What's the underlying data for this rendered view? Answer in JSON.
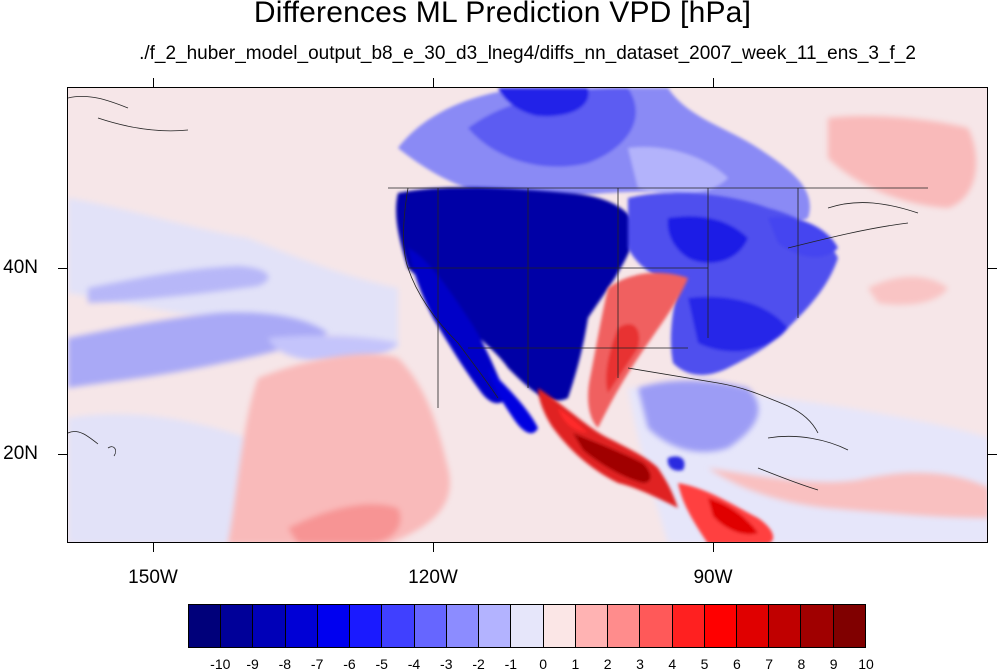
{
  "title": "Differences ML Prediction VPD [hPa]",
  "subtitle": "./f_2_huber_model_output_b8_e_30_d3_lneg4/diffs_nn_dataset_2007_week_11_ens_3_f_2",
  "lat_labels": [
    "40N",
    "20N"
  ],
  "lon_labels": [
    "150W",
    "120W",
    "90W"
  ],
  "colorbar": {
    "labels": [
      "-10",
      "-9",
      "-8",
      "-7",
      "-6",
      "-5",
      "-4",
      "-3",
      "-2",
      "-1",
      "0",
      "1",
      "2",
      "3",
      "4",
      "5",
      "6",
      "7",
      "8",
      "9",
      "10"
    ],
    "colors": [
      "#00007a",
      "#000099",
      "#0000b8",
      "#0000d6",
      "#0000f0",
      "#1a1aff",
      "#4040ff",
      "#6666ff",
      "#8c8cff",
      "#b3b3ff",
      "#e6e6fa",
      "#fbe6e6",
      "#ffb3b3",
      "#ff8c8c",
      "#ff5959",
      "#ff2020",
      "#ff0000",
      "#e00000",
      "#c00000",
      "#a00000",
      "#800000"
    ]
  }
}
